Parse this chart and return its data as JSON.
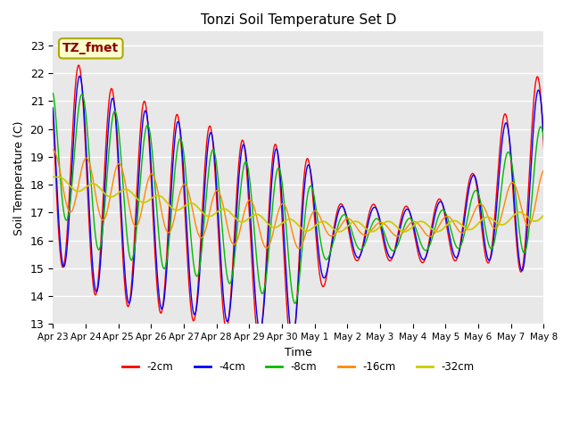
{
  "title": "Tonzi Soil Temperature Set D",
  "xlabel": "Time",
  "ylabel": "Soil Temperature (C)",
  "ylim": [
    13.0,
    23.5
  ],
  "yticks": [
    13.0,
    14.0,
    15.0,
    16.0,
    17.0,
    18.0,
    19.0,
    20.0,
    21.0,
    22.0,
    23.0
  ],
  "annotation": "TZ_fmet",
  "colors": {
    "-2cm": "#ff0000",
    "-4cm": "#0000ff",
    "-8cm": "#00bb00",
    "-16cm": "#ff8800",
    "-32cm": "#cccc00"
  },
  "legend_labels": [
    "-2cm",
    "-4cm",
    "-8cm",
    "-16cm",
    "-32cm"
  ],
  "bg_color": "#e8e8e8",
  "x_tick_labels": [
    "Apr 23",
    "Apr 24",
    "Apr 25",
    "Apr 26",
    "Apr 27",
    "Apr 28",
    "Apr 29",
    "Apr 30",
    "May 1",
    "May 2",
    "May 3",
    "May 4",
    "May 5",
    "May 6",
    "May 7",
    "May 8"
  ]
}
